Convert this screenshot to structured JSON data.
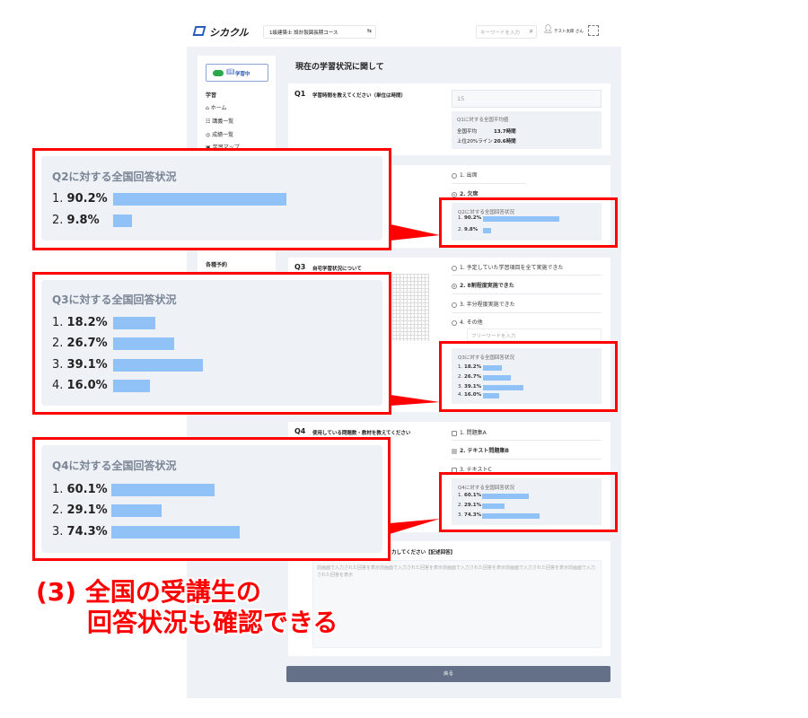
{
  "header": {
    "logo": "シカクル",
    "course": "1級建築士 設計製図長期コース",
    "search_placeholder": "キーワードを入力",
    "user": "テスト太郎 さん"
  },
  "sidebar": {
    "study_toggle": "学習中",
    "section_study": "学習",
    "items": [
      "ホーム",
      "講義一覧",
      "成績一覧",
      "学習マップ"
    ],
    "section_reserve": "各種予約"
  },
  "page_title": "現在の学習状況に関して",
  "q1": {
    "num": "Q1",
    "text": "学習時間を教えてください（単位は時間）",
    "value": "15",
    "stats_title": "Q1に対する全国平均値",
    "avg_label": "全国平均",
    "avg_value": "13.7時間",
    "top_label": "上位20%ライン",
    "top_value": "20.6時間"
  },
  "q2": {
    "options": [
      "1. 出席",
      "2. 欠席"
    ],
    "selected": 1,
    "stats_title": "Q2に対する全国回答状況",
    "results": [
      {
        "label": "1.",
        "pct": "90.2%",
        "value": 90.2
      },
      {
        "label": "2.",
        "pct": "9.8%",
        "value": 9.8
      }
    ]
  },
  "q3": {
    "num": "Q3",
    "text": "自宅学習状況について",
    "options": [
      "1. 予定していた学習項目を全て実施できた",
      "2. 8割程度実施できた",
      "3. 半分程度実施できた",
      "4. その他"
    ],
    "selected": 1,
    "free_placeholder": "フリーワードを入力",
    "stats_title": "Q3に対する全国回答状況",
    "results": [
      {
        "label": "1.",
        "pct": "18.2%",
        "value": 18.2
      },
      {
        "label": "2.",
        "pct": "26.7%",
        "value": 26.7
      },
      {
        "label": "3.",
        "pct": "39.1%",
        "value": 39.1
      },
      {
        "label": "4.",
        "pct": "16.0%",
        "value": 16.0
      }
    ]
  },
  "q4": {
    "num": "Q4",
    "text": "使用している問題数・教材を教えてください",
    "options": [
      "1. 問題集A",
      "2. テキスト問題集B",
      "3. テキストC"
    ],
    "checked": [
      1
    ],
    "stats_title": "Q4に対する全国回答状況",
    "results": [
      {
        "label": "1.",
        "pct": "60.1%",
        "value": 60.1
      },
      {
        "label": "2.",
        "pct": "29.1%",
        "value": 29.1
      },
      {
        "label": "3.",
        "pct": "74.3%",
        "value": 74.3
      }
    ]
  },
  "q5": {
    "text_partial": "力してください【記述回答】",
    "answer": "前画面で入力された回答を表示前画面で入力された回答を表示前画面で入力された回答を表示前画面で入力された回答を表示前画面で入力された回答を表示"
  },
  "back_button": "戻る",
  "caption": {
    "line1": "(3) 全国の受講生の",
    "line2": "回答状況も確認できる"
  },
  "colors": {
    "accent_red": "#ff0000",
    "bar": "#90c2f8",
    "button": "#637088",
    "panel": "#eef1f6"
  }
}
